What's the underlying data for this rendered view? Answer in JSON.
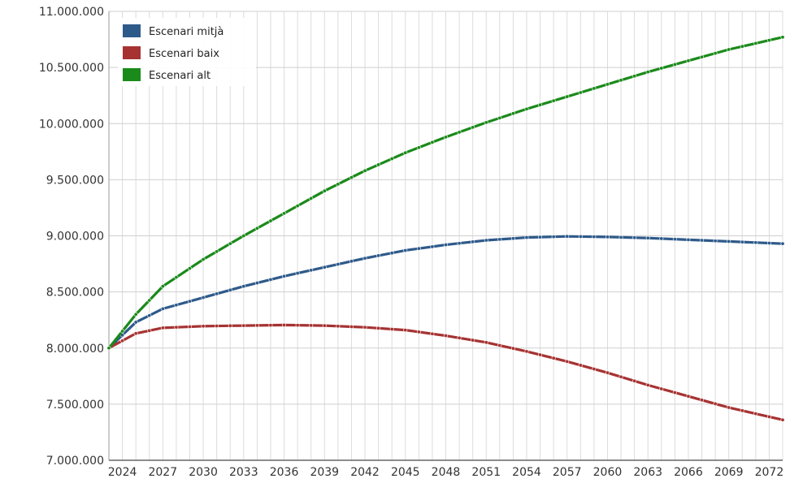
{
  "chart_data": {
    "type": "line",
    "title": "",
    "xlabel": "",
    "ylabel": "",
    "xlim": [
      2023,
      2073
    ],
    "ylim": [
      7000000,
      11000000
    ],
    "x_ticks": [
      2024,
      2027,
      2030,
      2033,
      2036,
      2039,
      2042,
      2045,
      2048,
      2051,
      2054,
      2057,
      2060,
      2063,
      2066,
      2069,
      2072
    ],
    "y_ticks": [
      7000000,
      7500000,
      8000000,
      8500000,
      9000000,
      9500000,
      10000000,
      10500000,
      11000000
    ],
    "y_tick_labels": [
      "7.000.000",
      "7.500.000",
      "8.000.000",
      "8.500.000",
      "9.000.000",
      "9.500.000",
      "10.000.000",
      "10.500.000",
      "11.000.000"
    ],
    "grid": true,
    "legend_position": "top-left",
    "series": [
      {
        "name": "Escenari mitjà",
        "color": "#2e5a8a",
        "points": [
          [
            2023,
            8000000
          ],
          [
            2025,
            8230000
          ],
          [
            2027,
            8350000
          ],
          [
            2030,
            8450000
          ],
          [
            2033,
            8550000
          ],
          [
            2036,
            8640000
          ],
          [
            2039,
            8720000
          ],
          [
            2042,
            8800000
          ],
          [
            2045,
            8870000
          ],
          [
            2048,
            8920000
          ],
          [
            2051,
            8960000
          ],
          [
            2054,
            8985000
          ],
          [
            2057,
            8995000
          ],
          [
            2060,
            8990000
          ],
          [
            2063,
            8980000
          ],
          [
            2066,
            8965000
          ],
          [
            2069,
            8950000
          ],
          [
            2073,
            8930000
          ]
        ]
      },
      {
        "name": "Escenari baix",
        "color": "#a63232",
        "points": [
          [
            2023,
            8000000
          ],
          [
            2025,
            8130000
          ],
          [
            2027,
            8180000
          ],
          [
            2030,
            8195000
          ],
          [
            2033,
            8200000
          ],
          [
            2036,
            8205000
          ],
          [
            2039,
            8200000
          ],
          [
            2042,
            8185000
          ],
          [
            2045,
            8160000
          ],
          [
            2048,
            8110000
          ],
          [
            2051,
            8050000
          ],
          [
            2054,
            7970000
          ],
          [
            2057,
            7880000
          ],
          [
            2060,
            7780000
          ],
          [
            2063,
            7670000
          ],
          [
            2066,
            7570000
          ],
          [
            2069,
            7470000
          ],
          [
            2073,
            7360000
          ]
        ]
      },
      {
        "name": "Escenari alt",
        "color": "#1a8a1a",
        "points": [
          [
            2023,
            8000000
          ],
          [
            2025,
            8300000
          ],
          [
            2027,
            8550000
          ],
          [
            2030,
            8790000
          ],
          [
            2033,
            9000000
          ],
          [
            2036,
            9200000
          ],
          [
            2039,
            9400000
          ],
          [
            2042,
            9580000
          ],
          [
            2045,
            9740000
          ],
          [
            2048,
            9880000
          ],
          [
            2051,
            10010000
          ],
          [
            2054,
            10130000
          ],
          [
            2057,
            10240000
          ],
          [
            2060,
            10350000
          ],
          [
            2063,
            10460000
          ],
          [
            2066,
            10560000
          ],
          [
            2069,
            10660000
          ],
          [
            2073,
            10770000
          ]
        ]
      }
    ]
  }
}
